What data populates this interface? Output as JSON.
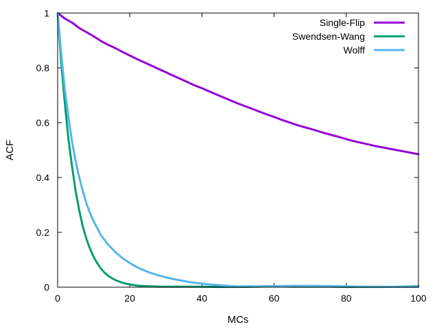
{
  "chart_data": {
    "type": "line",
    "title": "",
    "xlabel": "MCs",
    "ylabel": "ACF",
    "xlim": [
      0,
      100
    ],
    "ylim": [
      0,
      1
    ],
    "xticks": [
      "0",
      "20",
      "40",
      "60",
      "80",
      "100"
    ],
    "yticks": [
      "0",
      "0.2",
      "0.4",
      "0.6",
      "0.8",
      "1"
    ],
    "grid": false,
    "legend_position": "top-right",
    "series": [
      {
        "name": "Single-Flip",
        "color": "#9400d3",
        "x": [
          0,
          2,
          4,
          6,
          8,
          10,
          12,
          14,
          16,
          18,
          20,
          22,
          24,
          26,
          28,
          30,
          32,
          34,
          36,
          38,
          40,
          42,
          44,
          46,
          48,
          50,
          52,
          54,
          56,
          58,
          60,
          62,
          64,
          66,
          68,
          70,
          72,
          74,
          76,
          78,
          80,
          82,
          84,
          86,
          88,
          90,
          92,
          94,
          96,
          98,
          100
        ],
        "values": [
          1.0,
          0.98,
          0.965,
          0.945,
          0.93,
          0.915,
          0.898,
          0.884,
          0.872,
          0.858,
          0.845,
          0.832,
          0.82,
          0.808,
          0.796,
          0.784,
          0.772,
          0.76,
          0.748,
          0.736,
          0.726,
          0.714,
          0.703,
          0.692,
          0.681,
          0.67,
          0.66,
          0.65,
          0.64,
          0.63,
          0.621,
          0.611,
          0.602,
          0.593,
          0.585,
          0.578,
          0.57,
          0.562,
          0.555,
          0.548,
          0.54,
          0.533,
          0.527,
          0.521,
          0.515,
          0.51,
          0.505,
          0.5,
          0.495,
          0.49,
          0.485
        ]
      },
      {
        "name": "Swendsen-Wang",
        "color": "#009e73",
        "x": [
          0,
          1,
          2,
          3,
          4,
          5,
          6,
          7,
          8,
          9,
          10,
          11,
          12,
          13,
          14,
          15,
          16,
          18,
          20,
          22,
          24,
          26,
          28,
          30,
          35,
          40,
          45,
          50,
          55,
          60,
          65,
          70,
          75,
          80,
          85,
          90,
          95,
          100
        ],
        "values": [
          1.0,
          0.82,
          0.67,
          0.54,
          0.44,
          0.35,
          0.28,
          0.22,
          0.175,
          0.14,
          0.11,
          0.087,
          0.068,
          0.053,
          0.042,
          0.033,
          0.026,
          0.016,
          0.01,
          0.006,
          0.004,
          0.003,
          0.002,
          0.002,
          0.002,
          0.002,
          0.001,
          0.001,
          0.002,
          0.003,
          0.002,
          0.002,
          0.002,
          0.001,
          0.001,
          0.001,
          0.002,
          0.003
        ]
      },
      {
        "name": "Wolff",
        "color": "#56b4e9",
        "x": [
          0,
          1,
          2,
          3,
          4,
          5,
          6,
          7,
          8,
          9,
          10,
          12,
          14,
          16,
          18,
          20,
          22,
          24,
          26,
          28,
          30,
          32,
          34,
          36,
          38,
          40,
          42,
          44,
          46,
          48,
          50,
          55,
          60,
          65,
          70,
          75,
          80,
          85,
          90,
          95,
          100
        ],
        "values": [
          1.0,
          0.85,
          0.72,
          0.62,
          0.53,
          0.46,
          0.4,
          0.35,
          0.305,
          0.27,
          0.24,
          0.19,
          0.155,
          0.128,
          0.106,
          0.088,
          0.073,
          0.061,
          0.051,
          0.043,
          0.036,
          0.03,
          0.025,
          0.02,
          0.016,
          0.013,
          0.01,
          0.008,
          0.006,
          0.004,
          0.003,
          0.003,
          0.004,
          0.005,
          0.005,
          0.004,
          0.003,
          0.002,
          0.002,
          0.001,
          0.001
        ]
      }
    ]
  }
}
